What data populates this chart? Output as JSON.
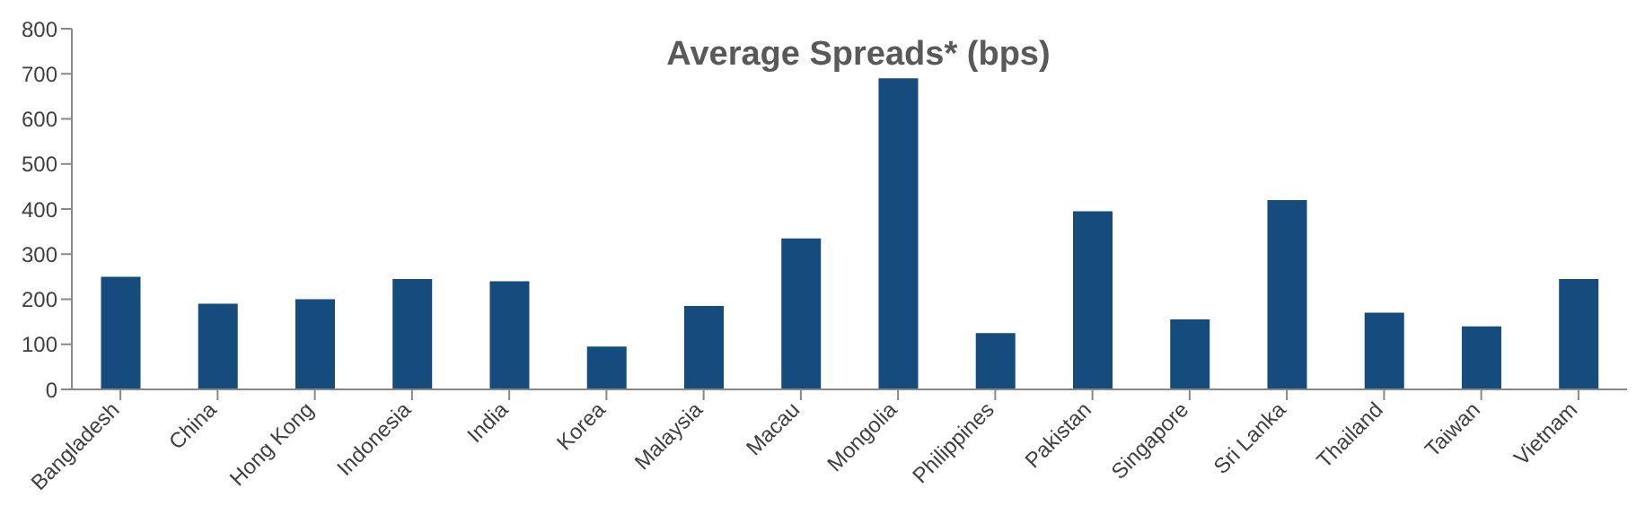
{
  "chart_data": {
    "type": "bar",
    "title": "Average Spreads* (bps)",
    "categories": [
      "Bangladesh",
      "China",
      "Hong Kong",
      "Indonesia",
      "India",
      "Korea",
      "Malaysia",
      "Macau",
      "Mongolia",
      "Philippines",
      "Pakistan",
      "Singapore",
      "Sri Lanka",
      "Thailand",
      "Taiwan",
      "Vietnam"
    ],
    "values": [
      250,
      190,
      200,
      245,
      240,
      95,
      185,
      335,
      690,
      125,
      395,
      155,
      420,
      170,
      140,
      245
    ],
    "color": "#154b7d",
    "ylim": [
      0,
      800
    ],
    "yticks": [
      0,
      100,
      200,
      300,
      400,
      500,
      600,
      700,
      800
    ],
    "grid": false,
    "legend": false
  }
}
